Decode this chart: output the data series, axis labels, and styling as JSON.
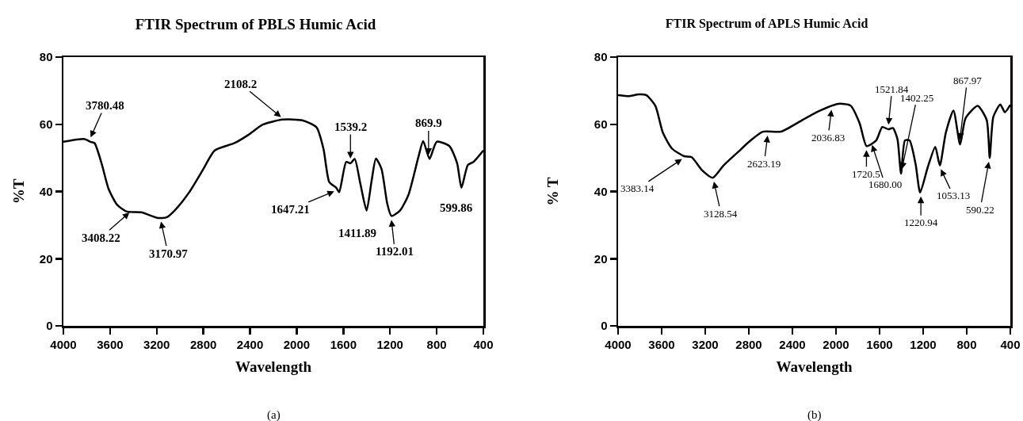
{
  "chart_data": [
    {
      "type": "line",
      "title": "FTIR Spectrum of PBLS Humic Acid",
      "xlabel": "Wavelength",
      "ylabel": "%T",
      "xlim": [
        4000,
        400
      ],
      "xticks": [
        4000,
        3600,
        3200,
        2800,
        2400,
        2000,
        1600,
        1200,
        800,
        400
      ],
      "ylim": [
        0,
        80
      ],
      "yticks": [
        0,
        20,
        40,
        60,
        80
      ],
      "marker": "none",
      "line_style": "solid",
      "series": [
        {
          "color": "#000000",
          "x": [
            4000,
            3818,
            3770,
            3733,
            3673,
            3612,
            3539,
            3455,
            3333,
            3188,
            3115,
            3042,
            2921,
            2800,
            2703,
            2533,
            2412,
            2291,
            2121,
            1952,
            1830,
            1770,
            1721,
            1661,
            1636,
            1576,
            1539,
            1503,
            1455,
            1401,
            1358,
            1321,
            1273,
            1224,
            1188,
            1115,
            1042,
            958,
            916,
            861,
            800,
            691,
            625,
            588,
            533,
            485,
            400
          ],
          "values": [
            54.8,
            55.6,
            54.8,
            54.4,
            48.4,
            40.7,
            36.0,
            34.0,
            33.8,
            32.1,
            32.3,
            34.5,
            39.8,
            46.7,
            52.2,
            54.4,
            56.9,
            59.9,
            61.4,
            61.2,
            59.1,
            52.6,
            42.8,
            41.1,
            39.8,
            48.8,
            48.4,
            49.7,
            42.4,
            34.3,
            43.2,
            49.8,
            46.7,
            36.4,
            32.7,
            34.3,
            39.0,
            50.1,
            55.0,
            49.7,
            54.8,
            53.5,
            48.4,
            41.1,
            47.9,
            48.8,
            52.2
          ]
        }
      ],
      "annotations": [
        {
          "text": "3780.48",
          "x": 3780.48,
          "y": 55
        },
        {
          "text": "3408.22",
          "x": 3408.22,
          "y": 34.5
        },
        {
          "text": "3170.97",
          "x": 3170.97,
          "y": 32.2
        },
        {
          "text": "2108.2",
          "x": 2108.2,
          "y": 61.4
        },
        {
          "text": "1647.21",
          "x": 1647.21,
          "y": 40.5
        },
        {
          "text": "1539.2",
          "x": 1539.2,
          "y": 48.6
        },
        {
          "text": "1411.89",
          "x": 1411.89,
          "y": 34.3
        },
        {
          "text": "1192.01",
          "x": 1192.01,
          "y": 32.7
        },
        {
          "text": "869.9",
          "x": 869.9,
          "y": 49.7
        },
        {
          "text": "599.86",
          "x": 599.86,
          "y": 41
        },
        "(a)"
      ]
    },
    {
      "type": "line",
      "title": "FTIR Spectrum of APLS Humic Acid",
      "xlabel": "Wavelength",
      "ylabel": "% T",
      "xlim": [
        4000,
        400
      ],
      "xticks": [
        4000,
        3600,
        3200,
        2800,
        2400,
        2000,
        1600,
        1200,
        800,
        400
      ],
      "ylim": [
        0,
        80
      ],
      "yticks": [
        0,
        20,
        40,
        60,
        80
      ],
      "marker": "none",
      "line_style": "solid",
      "series": [
        {
          "color": "#000000",
          "x": [
            4000,
            3894,
            3811,
            3742,
            3658,
            3589,
            3506,
            3394,
            3325,
            3228,
            3131,
            3033,
            2894,
            2783,
            2672,
            2506,
            2311,
            2172,
            1978,
            1867,
            1783,
            1719,
            1631,
            1575,
            1519,
            1478,
            1436,
            1403,
            1367,
            1325,
            1269,
            1228,
            1158,
            1089,
            1047,
            992,
            922,
            861,
            811,
            700,
            617,
            589,
            556,
            492,
            450,
            400
          ],
          "values": [
            68.7,
            68.4,
            68.9,
            68.7,
            65.5,
            57.5,
            52.8,
            50.5,
            50.2,
            46.3,
            44.1,
            47.7,
            51.9,
            55.2,
            57.8,
            57.8,
            61.2,
            63.7,
            66.1,
            65.6,
            60.3,
            53.5,
            55.2,
            59.2,
            58.5,
            58.9,
            55.6,
            45.3,
            55.2,
            55.2,
            48.1,
            39.7,
            47.2,
            53.3,
            47.7,
            57.5,
            64.1,
            54.0,
            61.8,
            65.5,
            61.3,
            50.0,
            62.2,
            65.9,
            63.6,
            65.8
          ]
        }
      ],
      "annotations": [
        {
          "text": "3383.14",
          "x": 3383.14,
          "y": 50.3
        },
        {
          "text": "3128.54",
          "x": 3128.54,
          "y": 44.1
        },
        {
          "text": "2623.19",
          "x": 2623.19,
          "y": 57.8
        },
        {
          "text": "2036.83",
          "x": 2036.83,
          "y": 65.5
        },
        {
          "text": "1720.5",
          "x": 1720.5,
          "y": 53.5
        },
        {
          "text": "1680.00",
          "x": 1680.0,
          "y": 55
        },
        {
          "text": "1521.84",
          "x": 1521.84,
          "y": 58.7
        },
        {
          "text": "1402.25",
          "x": 1402.25,
          "y": 45.5
        },
        {
          "text": "1220.94",
          "x": 1220.94,
          "y": 39.7
        },
        {
          "text": "1053.13",
          "x": 1053.13,
          "y": 47.7
        },
        {
          "text": "867.97",
          "x": 867.97,
          "y": 54.2
        },
        {
          "text": "590.22",
          "x": 590.22,
          "y": 50
        },
        "(b)"
      ]
    }
  ]
}
